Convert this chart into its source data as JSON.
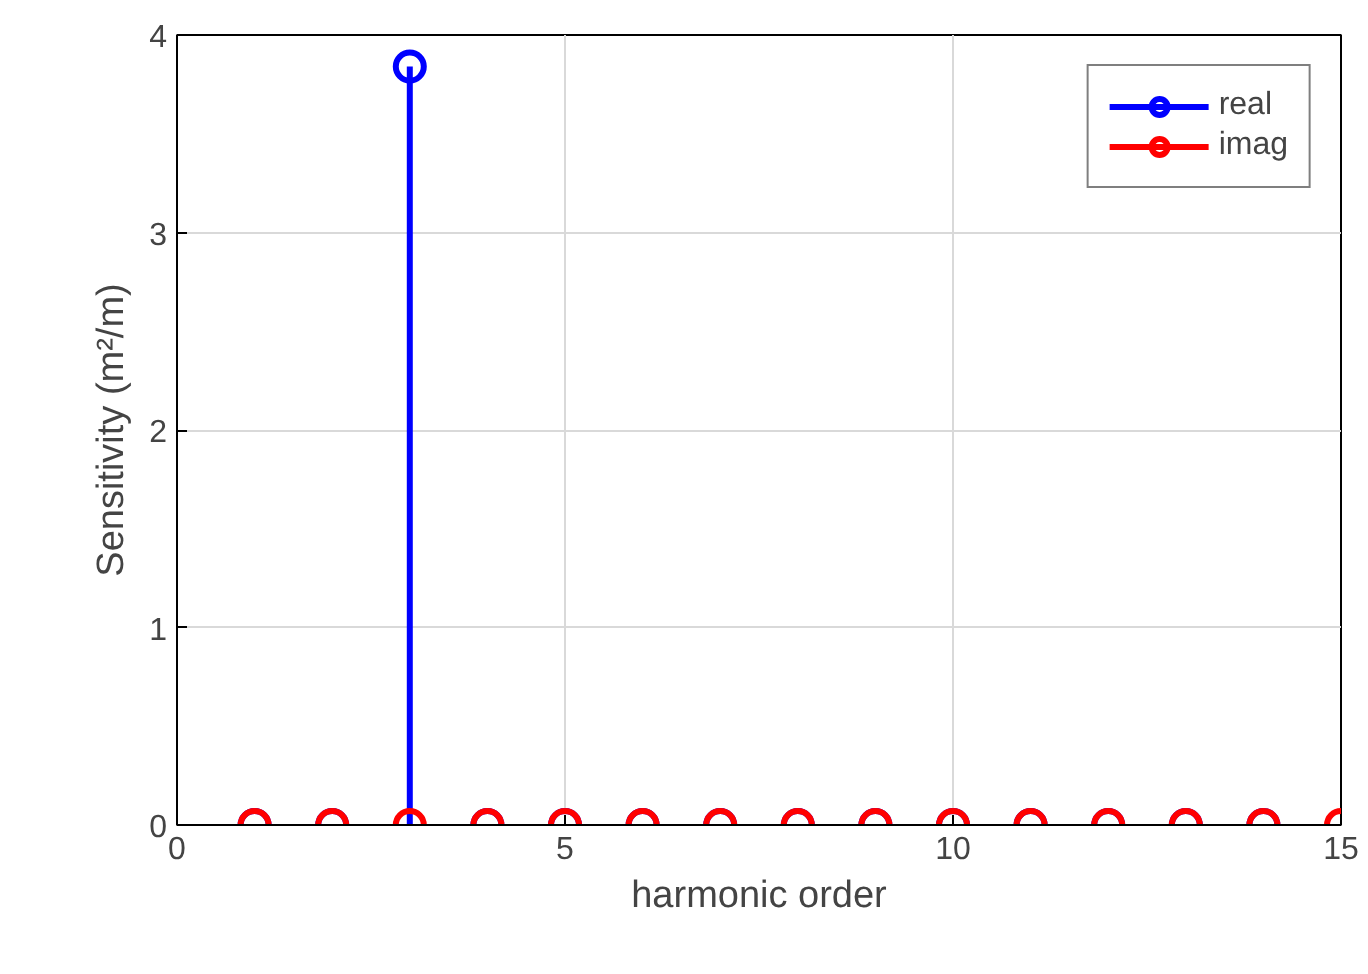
{
  "chart_data": {
    "type": "lollipop",
    "xlabel": "harmonic order",
    "ylabel": "Sensitivity (m²/m)",
    "x": [
      1,
      2,
      3,
      4,
      5,
      6,
      7,
      8,
      9,
      10,
      11,
      12,
      13,
      14,
      15
    ],
    "series": [
      {
        "name": "real",
        "color": "#0000ff",
        "values": [
          0,
          0,
          3.84,
          0,
          0,
          0,
          0,
          0,
          0,
          0,
          0,
          0,
          0,
          0,
          null
        ]
      },
      {
        "name": "imag",
        "color": "#ff0000",
        "values": [
          0,
          0,
          0,
          0,
          0,
          0,
          0,
          0,
          0,
          0,
          0,
          0,
          0,
          0,
          0
        ]
      }
    ],
    "xlim": [
      0,
      15
    ],
    "xticks": [
      0,
      5,
      10,
      15
    ],
    "ylim": [
      0,
      4
    ],
    "yticks": [
      0,
      1,
      2,
      3,
      4
    ],
    "grid": true,
    "legend": "top right",
    "marker": "circle"
  }
}
